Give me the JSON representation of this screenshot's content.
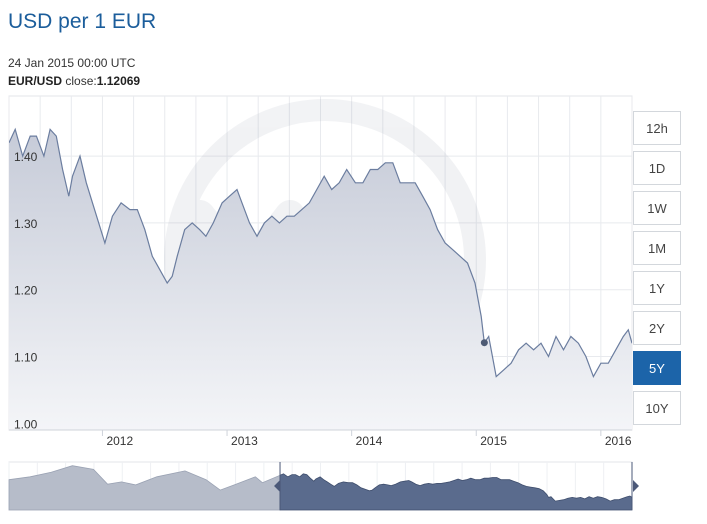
{
  "title": "USD per 1 EUR",
  "tooltip": {
    "date": "24 Jan 2015 00:00 UTC",
    "pair": "EUR/USD",
    "close_label": "close:",
    "close_value": "1.12069"
  },
  "range_buttons": [
    {
      "label": "12h",
      "active": false
    },
    {
      "label": "1D",
      "active": false
    },
    {
      "label": "1W",
      "active": false
    },
    {
      "label": "1M",
      "active": false
    },
    {
      "label": "1Y",
      "active": false
    },
    {
      "label": "2Y",
      "active": false
    },
    {
      "label": "5Y",
      "active": true
    },
    {
      "label": "10Y",
      "active": false
    }
  ],
  "colors": {
    "line": "#6b7d9f",
    "area_top": "#c9ceda",
    "area_bottom": "#f3f4f8",
    "accent": "#1c64a9",
    "navigator_left": "#b6bcc9",
    "navigator_right": "#5a6b8d"
  },
  "chart_data": {
    "type": "area",
    "title": "USD per 1 EUR",
    "xlabel": "",
    "ylabel": "",
    "xlim": [
      2011.25,
      2016.25
    ],
    "ylim": [
      0.99,
      1.49
    ],
    "grid": true,
    "y_ticks": [
      1.0,
      1.1,
      1.2,
      1.3,
      1.4
    ],
    "y_tick_labels": [
      "1.00",
      "1.10",
      "1.20",
      "1.30",
      "1.40"
    ],
    "x_ticks": [
      2012,
      2013,
      2014,
      2015,
      2016
    ],
    "x_tick_labels": [
      "2012",
      "2013",
      "2014",
      "2015",
      "2016"
    ],
    "highlight": {
      "x": 2015.065,
      "y": 1.12069
    },
    "series": [
      {
        "values": [
          [
            2011.25,
            1.42
          ],
          [
            2011.3,
            1.44
          ],
          [
            2011.36,
            1.4
          ],
          [
            2011.42,
            1.43
          ],
          [
            2011.47,
            1.43
          ],
          [
            2011.53,
            1.4
          ],
          [
            2011.58,
            1.44
          ],
          [
            2011.63,
            1.43
          ],
          [
            2011.68,
            1.38
          ],
          [
            2011.73,
            1.34
          ],
          [
            2011.76,
            1.37
          ],
          [
            2011.82,
            1.4
          ],
          [
            2011.87,
            1.36
          ],
          [
            2011.92,
            1.33
          ],
          [
            2011.97,
            1.3
          ],
          [
            2012.02,
            1.27
          ],
          [
            2012.08,
            1.31
          ],
          [
            2012.15,
            1.33
          ],
          [
            2012.22,
            1.32
          ],
          [
            2012.28,
            1.32
          ],
          [
            2012.34,
            1.29
          ],
          [
            2012.4,
            1.25
          ],
          [
            2012.46,
            1.23
          ],
          [
            2012.52,
            1.21
          ],
          [
            2012.56,
            1.22
          ],
          [
            2012.6,
            1.25
          ],
          [
            2012.66,
            1.29
          ],
          [
            2012.72,
            1.3
          ],
          [
            2012.78,
            1.29
          ],
          [
            2012.83,
            1.28
          ],
          [
            2012.89,
            1.3
          ],
          [
            2012.96,
            1.33
          ],
          [
            2013.02,
            1.34
          ],
          [
            2013.08,
            1.35
          ],
          [
            2013.12,
            1.33
          ],
          [
            2013.18,
            1.3
          ],
          [
            2013.24,
            1.28
          ],
          [
            2013.3,
            1.3
          ],
          [
            2013.36,
            1.31
          ],
          [
            2013.42,
            1.3
          ],
          [
            2013.48,
            1.31
          ],
          [
            2013.54,
            1.31
          ],
          [
            2013.6,
            1.32
          ],
          [
            2013.66,
            1.33
          ],
          [
            2013.72,
            1.35
          ],
          [
            2013.78,
            1.37
          ],
          [
            2013.84,
            1.35
          ],
          [
            2013.9,
            1.36
          ],
          [
            2013.96,
            1.38
          ],
          [
            2014.03,
            1.36
          ],
          [
            2014.09,
            1.36
          ],
          [
            2014.15,
            1.38
          ],
          [
            2014.21,
            1.38
          ],
          [
            2014.27,
            1.39
          ],
          [
            2014.33,
            1.39
          ],
          [
            2014.39,
            1.36
          ],
          [
            2014.45,
            1.36
          ],
          [
            2014.51,
            1.36
          ],
          [
            2014.57,
            1.34
          ],
          [
            2014.63,
            1.32
          ],
          [
            2014.69,
            1.29
          ],
          [
            2014.75,
            1.27
          ],
          [
            2014.81,
            1.26
          ],
          [
            2014.87,
            1.25
          ],
          [
            2014.93,
            1.24
          ],
          [
            2014.99,
            1.21
          ],
          [
            2015.04,
            1.16
          ],
          [
            2015.065,
            1.12069
          ],
          [
            2015.1,
            1.13
          ],
          [
            2015.16,
            1.07
          ],
          [
            2015.22,
            1.08
          ],
          [
            2015.28,
            1.09
          ],
          [
            2015.34,
            1.11
          ],
          [
            2015.4,
            1.12
          ],
          [
            2015.46,
            1.11
          ],
          [
            2015.52,
            1.12
          ],
          [
            2015.58,
            1.1
          ],
          [
            2015.64,
            1.13
          ],
          [
            2015.7,
            1.11
          ],
          [
            2015.76,
            1.13
          ],
          [
            2015.82,
            1.12
          ],
          [
            2015.88,
            1.1
          ],
          [
            2015.94,
            1.07
          ],
          [
            2016.0,
            1.09
          ],
          [
            2016.06,
            1.09
          ],
          [
            2016.12,
            1.11
          ],
          [
            2016.18,
            1.13
          ],
          [
            2016.22,
            1.14
          ],
          [
            2016.25,
            1.12
          ]
        ]
      }
    ]
  }
}
